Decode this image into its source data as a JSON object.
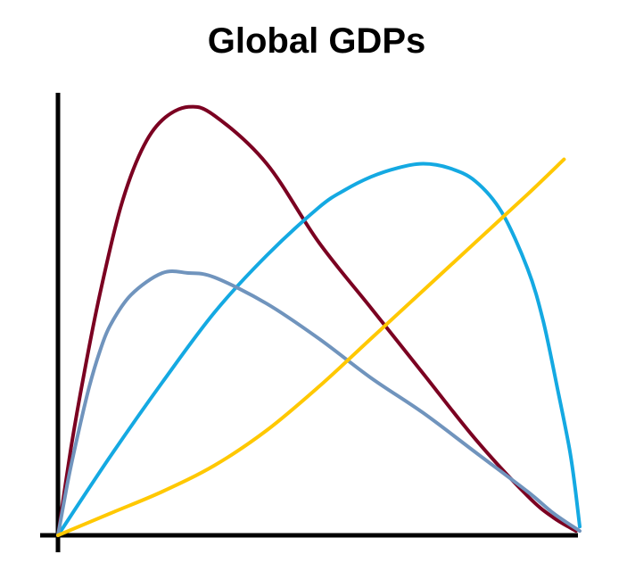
{
  "chart_data": {
    "type": "line",
    "title": "Global GDPs",
    "xlabel": "",
    "ylabel": "",
    "xlim": [
      0,
      1
    ],
    "ylim": [
      0,
      1
    ],
    "grid": false,
    "legend": "none",
    "axes_color": "#000000",
    "series": [
      {
        "color": "#7b0021",
        "x": [
          0,
          0.025,
          0.05,
          0.08,
          0.12,
          0.16,
          0.2,
          0.25,
          0.3,
          0.4,
          0.5,
          0.6,
          0.7,
          0.8,
          0.9,
          0.95,
          0.993
        ],
        "y": [
          0,
          0.2,
          0.37,
          0.55,
          0.75,
          0.88,
          0.95,
          0.98,
          0.96,
          0.85,
          0.67,
          0.52,
          0.37,
          0.22,
          0.09,
          0.04,
          0.01
        ]
      },
      {
        "color": "#14a9e2",
        "x": [
          0,
          0.1,
          0.2,
          0.3,
          0.4,
          0.5,
          0.55,
          0.6,
          0.65,
          0.7,
          0.75,
          0.8,
          0.85,
          0.9,
          0.93,
          0.96,
          0.98,
          0.99,
          1.0
        ],
        "y": [
          0,
          0.18,
          0.35,
          0.51,
          0.64,
          0.75,
          0.79,
          0.82,
          0.84,
          0.85,
          0.84,
          0.81,
          0.74,
          0.61,
          0.49,
          0.32,
          0.2,
          0.12,
          0.02
        ]
      },
      {
        "color": "#7094bd",
        "x": [
          0,
          0.02,
          0.04,
          0.06,
          0.08,
          0.1,
          0.14,
          0.2,
          0.25,
          0.3,
          0.4,
          0.5,
          0.6,
          0.7,
          0.8,
          0.9,
          0.95,
          1.0
        ],
        "y": [
          0,
          0.13,
          0.24,
          0.34,
          0.42,
          0.48,
          0.55,
          0.6,
          0.6,
          0.59,
          0.53,
          0.45,
          0.36,
          0.28,
          0.19,
          0.1,
          0.05,
          0.01
        ]
      },
      {
        "color": "#ffc800",
        "x": [
          0,
          0.1,
          0.2,
          0.3,
          0.4,
          0.5,
          0.6,
          0.7,
          0.8,
          0.9,
          0.97
        ],
        "y": [
          0,
          0.05,
          0.1,
          0.16,
          0.24,
          0.34,
          0.45,
          0.56,
          0.67,
          0.78,
          0.86
        ]
      }
    ]
  }
}
